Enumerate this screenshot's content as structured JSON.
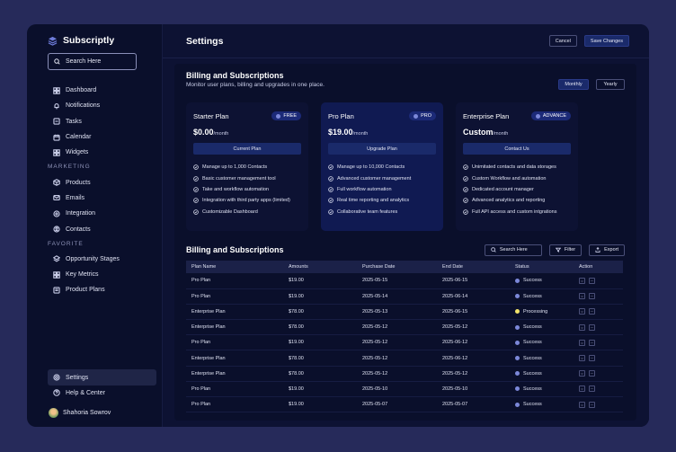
{
  "brand": {
    "name": "Subscriptly"
  },
  "search": {
    "label": "Search Here"
  },
  "nav": {
    "main": [
      "Dashboard",
      "Notifications",
      "Tasks",
      "Calendar",
      "Widgets"
    ],
    "marketing_label": "MARKETING",
    "marketing": [
      "Products",
      "Emails",
      "Integration",
      "Contacts"
    ],
    "favorite_label": "FAVORITE",
    "favorite": [
      "Opportunity Stages",
      "Key Metrics",
      "Product Plans"
    ],
    "settings": "Settings",
    "help": "Help & Center"
  },
  "user": {
    "name": "Shahoria Sowrov"
  },
  "header": {
    "title": "Settings",
    "cancel": "Cancel",
    "save": "Save Changes"
  },
  "billing": {
    "title": "Billing and Subscriptions",
    "subtitle": "Monitor user plans, billing and upgrades in one place.",
    "monthly": "Monthly",
    "yearly": "Yearly"
  },
  "plans": [
    {
      "name": "Starter Plan",
      "badge": "FREE",
      "price": "$0.00",
      "period": "/month",
      "button": "Current Plan",
      "features": [
        "Manage up to 1,000 Contacts",
        "Basic customer management tool",
        "Take and workflow automation",
        "Integration with third party apps (limited)",
        "Customizable Dashboard"
      ]
    },
    {
      "name": "Pro Plan",
      "badge": "PRO",
      "price": "$19.00",
      "period": "/month",
      "button": "Upgrade Plan",
      "features": [
        "Manage up to 10,000 Contacts",
        "Advanced customer management",
        "Full workflow automation",
        "Real time reporting and analytics",
        "Collaborative team features"
      ]
    },
    {
      "name": "Enterprise Plan",
      "badge": "ADVANCE",
      "price": "Custom",
      "period": "/month",
      "button": "Contact Us",
      "features": [
        "Unimitated contacts and data storages",
        "Custom Workflow and automation",
        "Dedicated account manager",
        "Advanced analytics and reporting",
        "Full API access and custom intgrations"
      ]
    }
  ],
  "table": {
    "title": "Billing and Subscriptions",
    "search": "Search Here",
    "filter": "Filter",
    "export": "Export",
    "columns": [
      "Plan Name",
      "Amounts",
      "Purchase Date",
      "End Date",
      "Status",
      "Action"
    ],
    "rows": [
      {
        "plan": "Pro Plan",
        "amount": "$19.00",
        "purchase": "2025-05-15",
        "end": "2025-06-15",
        "status": "Success"
      },
      {
        "plan": "Pro Plan",
        "amount": "$19.00",
        "purchase": "2025-05-14",
        "end": "2025-06-14",
        "status": "Success"
      },
      {
        "plan": "Enterprise Plan",
        "amount": "$78.00",
        "purchase": "2025-05-13",
        "end": "2025-06-15",
        "status": "Processing"
      },
      {
        "plan": "Enterprise Plan",
        "amount": "$78.00",
        "purchase": "2025-05-12",
        "end": "2025-05-12",
        "status": "Success"
      },
      {
        "plan": "Pro Plan",
        "amount": "$19.00",
        "purchase": "2025-05-12",
        "end": "2025-06-12",
        "status": "Success"
      },
      {
        "plan": "Enterprise Plan",
        "amount": "$78.00",
        "purchase": "2025-05-12",
        "end": "2025-06-12",
        "status": "Success"
      },
      {
        "plan": "Enterprise Plan",
        "amount": "$78.00",
        "purchase": "2025-05-12",
        "end": "2025-05-12",
        "status": "Success"
      },
      {
        "plan": "Pro Plan",
        "amount": "$19.00",
        "purchase": "2025-05-10",
        "end": "2025-05-10",
        "status": "Success"
      },
      {
        "plan": "Pro Plan",
        "amount": "$19.00",
        "purchase": "2025-05-07",
        "end": "2025-05-07",
        "status": "Success"
      }
    ]
  },
  "colors": {
    "success": "#7c88d9",
    "processing": "#f2e36a",
    "accent": "#1a2a6a"
  }
}
